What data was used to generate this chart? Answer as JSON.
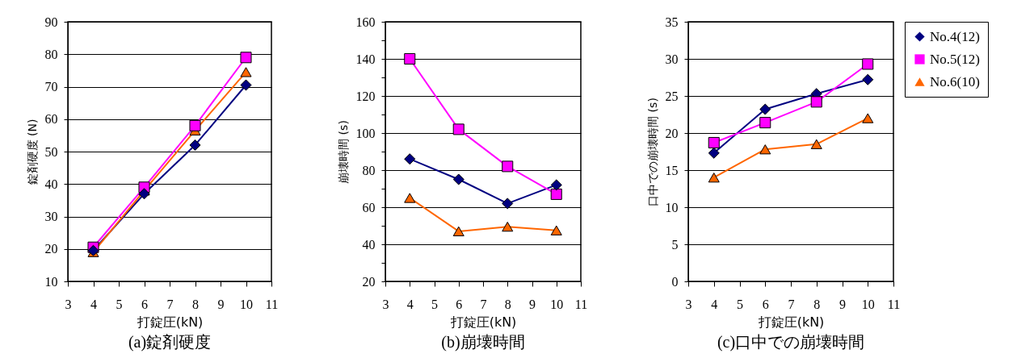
{
  "chart_data": [
    {
      "type": "line",
      "title": "(a)錠剤硬度",
      "xlabel": "打錠圧(kN)",
      "ylabel": "錠剤硬度 (N)",
      "x": [
        4,
        6,
        8,
        10
      ],
      "xlim": [
        3,
        11
      ],
      "xticks": [
        3,
        4,
        5,
        6,
        7,
        8,
        9,
        10,
        11
      ],
      "ylim": [
        10,
        90
      ],
      "yticks": [
        10,
        20,
        30,
        40,
        50,
        60,
        70,
        80,
        90
      ],
      "grid": "y",
      "legend": "top right",
      "series": [
        {
          "name": "No.4(12)",
          "color": "#000080",
          "marker": "diamond",
          "values": [
            19.5,
            37,
            52,
            70.5
          ]
        },
        {
          "name": "No.5(12)",
          "color": "#ff00ff",
          "marker": "square",
          "values": [
            20.5,
            39,
            58,
            79
          ]
        },
        {
          "name": "No.6(10)",
          "color": "#ff6600",
          "marker": "triangle",
          "values": [
            19,
            38,
            56.5,
            74.5
          ]
        }
      ]
    },
    {
      "type": "line",
      "title": "(b)崩壊時間",
      "xlabel": "打錠圧(kN)",
      "ylabel": "崩壊時間 (s)",
      "x": [
        4,
        6,
        8,
        10
      ],
      "xlim": [
        3,
        11
      ],
      "xticks": [
        3,
        4,
        5,
        6,
        7,
        8,
        9,
        10,
        11
      ],
      "ylim": [
        20,
        160
      ],
      "yticks": [
        20,
        {
          "value": 30,
          "label": null
        },
        40,
        {
          "value": 50,
          "label": null
        },
        60,
        {
          "value": 70,
          "label": null
        },
        80,
        {
          "value": 90,
          "label": null
        },
        100,
        {
          "value": 110,
          "label": null
        },
        120,
        {
          "value": 130,
          "label": null
        },
        140,
        {
          "value": 150,
          "label": null
        },
        160
      ],
      "grid": "y",
      "legend": "top right",
      "series": [
        {
          "name": "No.4(12)",
          "color": "#000080",
          "marker": "diamond",
          "values": [
            86,
            75,
            62,
            72
          ]
        },
        {
          "name": "No.5(12)",
          "color": "#ff00ff",
          "marker": "square",
          "values": [
            140,
            102,
            82,
            67
          ]
        },
        {
          "name": "No.6(10)",
          "color": "#ff6600",
          "marker": "triangle",
          "values": [
            65,
            47,
            49.5,
            47.5
          ]
        }
      ]
    },
    {
      "type": "line",
      "title": "(c)口中での崩壊時間",
      "xlabel": "打錠圧(kN)",
      "ylabel": "口中での崩壊時間 (s)",
      "x": [
        4,
        6,
        8,
        10
      ],
      "xlim": [
        3,
        11
      ],
      "xticks": [
        3,
        4,
        5,
        6,
        7,
        8,
        9,
        10,
        11
      ],
      "ylim": [
        0,
        35
      ],
      "yticks": [
        0,
        5,
        10,
        15,
        20,
        25,
        30,
        35
      ],
      "grid": "y",
      "legend": "top right",
      "series": [
        {
          "name": "No.4(12)",
          "color": "#000080",
          "marker": "diamond",
          "values": [
            17.3,
            23.2,
            25.3,
            27.2
          ]
        },
        {
          "name": "No.5(12)",
          "color": "#ff00ff",
          "marker": "square",
          "values": [
            18.7,
            21.4,
            24.2,
            29.3
          ]
        },
        {
          "name": "No.6(10)",
          "color": "#ff6600",
          "marker": "triangle",
          "values": [
            14,
            17.8,
            18.5,
            22
          ]
        }
      ]
    }
  ]
}
